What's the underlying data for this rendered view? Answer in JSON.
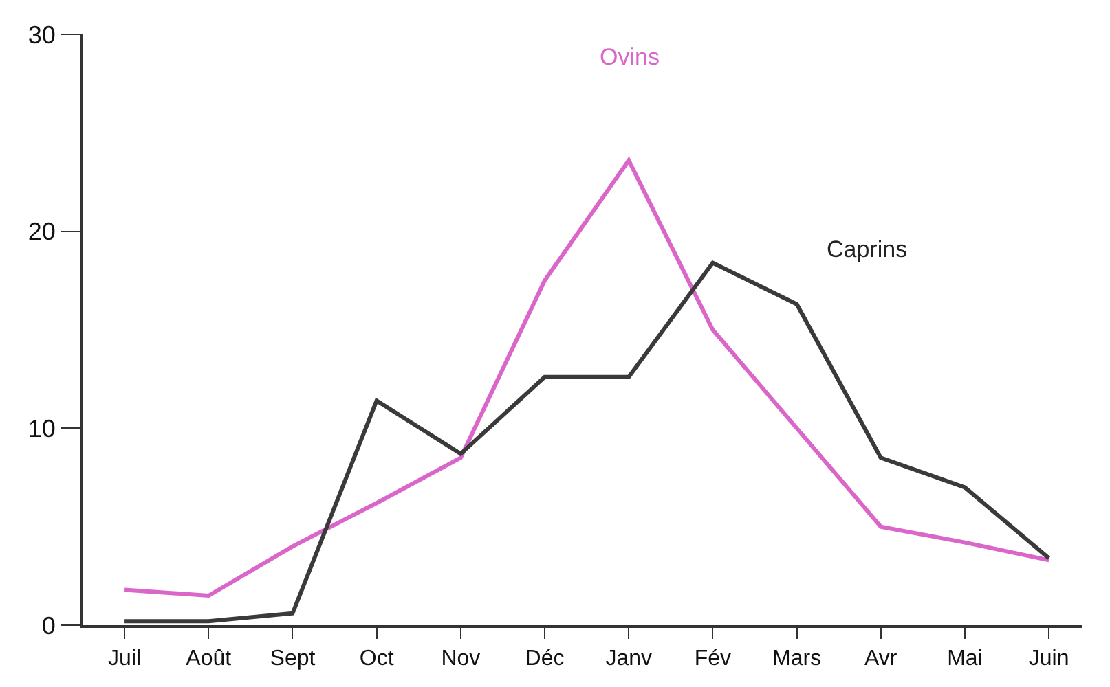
{
  "chart_data": {
    "type": "line",
    "categories": [
      "Juil",
      "Août",
      "Sept",
      "Oct",
      "Nov",
      "Déc",
      "Janv",
      "Fév",
      "Mars",
      "Avr",
      "Mai",
      "Juin"
    ],
    "series": [
      {
        "name": "Ovins",
        "color": "#d966c8",
        "values": [
          1.8,
          1.5,
          4.0,
          6.2,
          8.5,
          17.5,
          23.6,
          15.0,
          10.0,
          5.0,
          4.2,
          3.3
        ]
      },
      {
        "name": "Caprins",
        "color": "#3a3a3a",
        "values": [
          0.2,
          0.2,
          0.6,
          11.4,
          8.7,
          12.6,
          12.6,
          18.4,
          16.3,
          8.5,
          7.0,
          3.4
        ]
      }
    ],
    "ylim": [
      0,
      30
    ],
    "yticks": [
      0,
      10,
      20,
      30
    ],
    "legend": false,
    "marker": "none",
    "line_style": "solid"
  }
}
